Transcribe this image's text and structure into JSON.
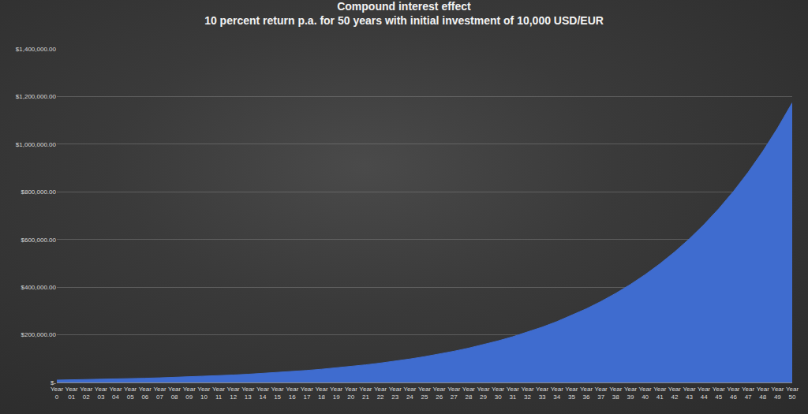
{
  "chart_data": {
    "type": "area",
    "title": "Compound interest effect",
    "subtitle": "10 percent return p.a. for 50 years with initial investment of 10,000 USD/EUR",
    "categories": [
      "Year 0",
      "Year 01",
      "Year 02",
      "Year 03",
      "Year 04",
      "Year 05",
      "Year 06",
      "Year 07",
      "Year 08",
      "Year 09",
      "Year 10",
      "Year 11",
      "Year 12",
      "Year 13",
      "Year 14",
      "Year 15",
      "Year 16",
      "Year 17",
      "Year 18",
      "Year 19",
      "Year 20",
      "Year 21",
      "Year 22",
      "Year 23",
      "Year 24",
      "Year 25",
      "Year 26",
      "Year 27",
      "Year 28",
      "Year 29",
      "Year 30",
      "Year 31",
      "Year 32",
      "Year 33",
      "Year 34",
      "Year 35",
      "Year 36",
      "Year 37",
      "Year 38",
      "Year 39",
      "Year 40",
      "Year 41",
      "Year 42",
      "Year 43",
      "Year 44",
      "Year 45",
      "Year 46",
      "Year 47",
      "Year 48",
      "Year 49",
      "Year 50"
    ],
    "values": [
      10000,
      11000,
      12100,
      13310,
      14641,
      16105,
      17716,
      19487,
      21436,
      23579,
      25937,
      28531,
      31384,
      34523,
      37975,
      41772,
      45950,
      50545,
      55599,
      61159,
      67275,
      74002,
      81403,
      89543,
      98497,
      108347,
      119182,
      131100,
      144210,
      158631,
      174494,
      191943,
      211138,
      232252,
      255477,
      281024,
      309127,
      340039,
      374043,
      411448,
      452593,
      497852,
      547637,
      602401,
      662641,
      728905,
      801795,
      881975,
      970172,
      1067190,
      1173909
    ],
    "color": "#3f6ccf",
    "ylim": [
      0,
      1400000
    ],
    "yticks": [
      {
        "value": 0,
        "label": "$-"
      },
      {
        "value": 200000,
        "label": "$200,000.00"
      },
      {
        "value": 400000,
        "label": "$400,000.00"
      },
      {
        "value": 600000,
        "label": "$600,000.00"
      },
      {
        "value": 800000,
        "label": "$800,000.00"
      },
      {
        "value": 1000000,
        "label": "$1,000,000.00"
      },
      {
        "value": 1200000,
        "label": "$1,200,000.00"
      },
      {
        "value": 1400000,
        "label": "$1,400,000.00"
      }
    ],
    "grid": true
  }
}
